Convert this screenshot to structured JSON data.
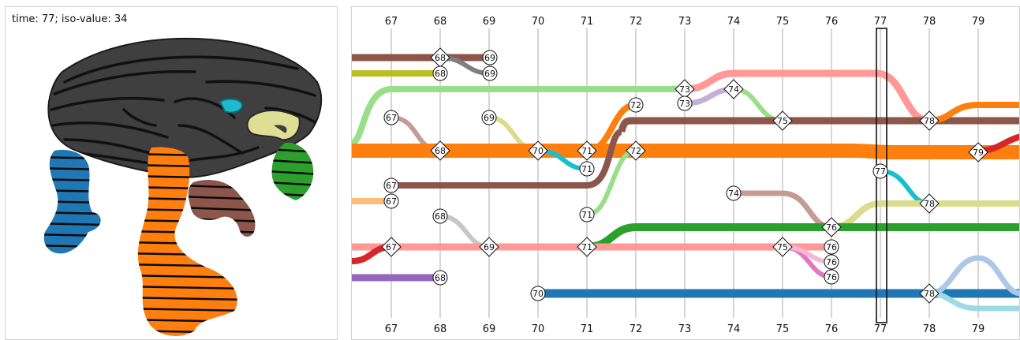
{
  "render_panel": {
    "caption": "time: 77; iso-value: 34"
  },
  "tracking_graph": {
    "time_axis_top": [
      "67",
      "68",
      "69",
      "70",
      "71",
      "72",
      "73",
      "74",
      "75",
      "76",
      "77",
      "78",
      "79"
    ],
    "time_axis_bottom": [
      "67",
      "68",
      "69",
      "70",
      "71",
      "72",
      "73",
      "74",
      "75",
      "76",
      "77",
      "78",
      "79"
    ],
    "current_time": "77",
    "node_labels": {
      "n68a": "68",
      "n69a": "69",
      "n68b": "68",
      "n69b": "69",
      "n73a": "73",
      "n74a": "74",
      "n73b": "73",
      "n72a": "72",
      "n67a": "67",
      "n69c": "69",
      "n75a": "75",
      "n78a": "78",
      "n68c": "68",
      "n70a": "70",
      "n71a": "71",
      "n72b": "72",
      "n79a": "79",
      "n71b": "71",
      "n77a": "77",
      "n67b": "67",
      "n74b": "74",
      "n67c": "67",
      "n78b": "78",
      "n68d": "68",
      "n71c": "71",
      "n76a": "76",
      "n67d": "67",
      "n69d": "69",
      "n71d": "71",
      "n75b": "75",
      "n76b": "76",
      "n76c": "76",
      "n76d": "76",
      "n68e": "68",
      "n70b": "70",
      "n78c": "78"
    },
    "colors": {
      "brown": "#8c564b",
      "olive": "#bcbd22",
      "gray": "#7f7f7f",
      "light_green": "#98df8a",
      "salmon": "#ff9896",
      "lavender": "#c5b0d5",
      "orange": "#ff7f0e",
      "tan": "#c49c94",
      "khaki": "#dbdb8d",
      "cyan": "#17becf",
      "peach": "#ffbb78",
      "light_gray": "#c7c7c7",
      "green": "#2ca02c",
      "red": "#d62728",
      "pink": "#e377c2",
      "purple": "#9467bd",
      "blue": "#1f77b4",
      "light_blue": "#aec7e8",
      "light_cyan": "#9edae5"
    }
  }
}
